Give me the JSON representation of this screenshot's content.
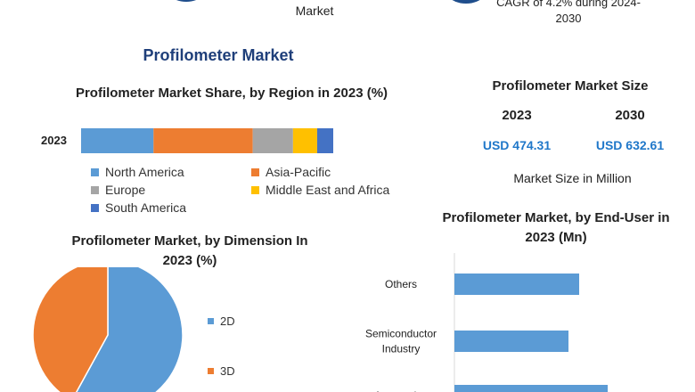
{
  "header": {
    "market_fragment": "Market",
    "cagr_line1": "CAGR of 4.2% during 2024-",
    "cagr_line2": "2030"
  },
  "main_title": "Profilometer Market",
  "market_size": {
    "title": "Profilometer Market Size",
    "year1": "2023",
    "year2": "2030",
    "value1": "USD 474.31",
    "value2": "USD 632.61",
    "unit_note": "Market Size in Million",
    "accent_color": "#1f77c9"
  },
  "chart_data": [
    {
      "type": "bar",
      "orientation": "horizontal-stacked",
      "title": "Profilometer Market Share, by Region in 2023 (%)",
      "categories": [
        "2023"
      ],
      "series": [
        {
          "name": "North America",
          "values": [
            27
          ],
          "color": "#5b9bd5"
        },
        {
          "name": "Asia-Pacific",
          "values": [
            37
          ],
          "color": "#ed7d31"
        },
        {
          "name": "Europe",
          "values": [
            15
          ],
          "color": "#a5a5a5"
        },
        {
          "name": "Middle East and Africa",
          "values": [
            9
          ],
          "color": "#ffc000"
        },
        {
          "name": "South America",
          "values": [
            6
          ],
          "color": "#4472c4"
        }
      ],
      "xlim": [
        0,
        100
      ]
    },
    {
      "type": "pie",
      "title": "Profilometer Market, by Dimension In 2023 (%)",
      "labels": [
        "2D",
        "3D"
      ],
      "values": [
        58,
        42
      ],
      "colors": [
        "#5b9bd5",
        "#ed7d31"
      ],
      "legend": "right"
    },
    {
      "type": "bar",
      "orientation": "horizontal",
      "title": "Profilometer Market, by End-User in 2023 (Mn)",
      "categories": [
        "Others",
        "Semiconductor Industry",
        "Automotive"
      ],
      "category_lines": [
        [
          "Others"
        ],
        [
          "Semiconductor",
          "Industry"
        ],
        [
          "Automotive"
        ]
      ],
      "values": [
        140,
        128,
        172
      ],
      "color": "#5b9bd5",
      "xlim": [
        0,
        200
      ]
    }
  ]
}
